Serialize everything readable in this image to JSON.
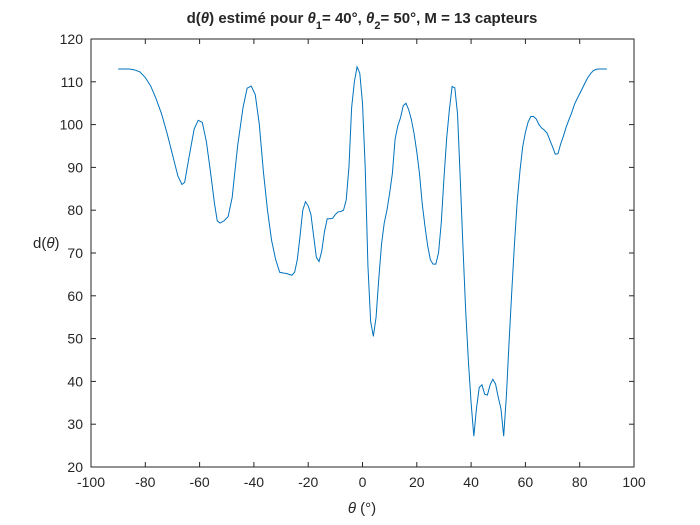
{
  "chart_data": {
    "type": "line",
    "title": {
      "prefix": "d(",
      "theta": "θ",
      "mid1": ") estimé pour ",
      "sub1": "1",
      "mid2": "= 40°, ",
      "sub2": "2",
      "suffix": "= 50°, M = 13 capteurs"
    },
    "xlabel": {
      "theta": "θ",
      "rest": " (°)"
    },
    "ylabel": {
      "prefix": "d(",
      "theta": "θ",
      "suffix": ")"
    },
    "xlim": [
      -100,
      100
    ],
    "ylim": [
      20,
      120
    ],
    "xticks": [
      -100,
      -80,
      -60,
      -40,
      -20,
      0,
      20,
      40,
      60,
      80,
      100
    ],
    "yticks": [
      20,
      30,
      40,
      50,
      60,
      70,
      80,
      90,
      100,
      110,
      120
    ],
    "grid": false,
    "legend": "none",
    "color": "#0072BD",
    "series": [
      {
        "x": [
          -90,
          -86,
          -84,
          -82,
          -80,
          -78,
          -76,
          -74,
          -72,
          -70,
          -68,
          -66.5,
          -65.5,
          -64,
          -62,
          -60.5,
          -59,
          -57.5,
          -56,
          -54.5,
          -53.5,
          -52.5,
          -51,
          -49.5,
          -48,
          -46,
          -44,
          -42.5,
          -41,
          -39.5,
          -38,
          -36.5,
          -35,
          -33.5,
          -32,
          -30.5,
          -29,
          -28,
          -27,
          -26,
          -25,
          -24,
          -23,
          -22,
          -21,
          -20,
          -19,
          -18,
          -17,
          -16,
          -15,
          -14,
          -13,
          -12,
          -11,
          -10,
          -9,
          -8,
          -7,
          -6,
          -5,
          -4,
          -3,
          -2,
          -1,
          0,
          1,
          2,
          3,
          4,
          5,
          6,
          7,
          8,
          9,
          10,
          11,
          12,
          13,
          14,
          15,
          16,
          17,
          18,
          19,
          20,
          21,
          22,
          23,
          24,
          25,
          26,
          27,
          28,
          29,
          30,
          31,
          32,
          33,
          34,
          35,
          36,
          37,
          38,
          39,
          40,
          41,
          42,
          43,
          44,
          45,
          46,
          47,
          48,
          49,
          50,
          51,
          52,
          53,
          54,
          55,
          56,
          57,
          58,
          59,
          60,
          61,
          62,
          63,
          64,
          65,
          66,
          67,
          68,
          69,
          70,
          71,
          72,
          73,
          74,
          75,
          76,
          77,
          78,
          79,
          80,
          81,
          82,
          83,
          84,
          85,
          86,
          87,
          88,
          89,
          90
        ],
        "y": [
          113,
          113,
          112.8,
          112.3,
          111,
          109,
          106,
          102.5,
          98,
          93,
          88,
          86,
          86.5,
          92,
          99,
          101,
          100.5,
          96,
          89,
          81.5,
          77.5,
          77,
          77.5,
          78.5,
          83,
          95,
          104,
          108.5,
          109,
          107,
          100,
          89,
          80,
          73,
          68.5,
          65.5,
          65.3,
          65.2,
          65,
          64.8,
          65.5,
          68.5,
          74,
          80,
          82,
          81,
          79,
          74,
          69,
          68,
          70.5,
          75,
          78,
          78,
          78.1,
          79,
          79.6,
          79.7,
          80,
          82.4,
          90,
          104,
          110,
          113.5,
          112,
          105,
          90,
          67,
          54,
          50.5,
          55,
          64,
          72,
          77,
          80,
          84,
          88.6,
          96.6,
          99.7,
          101.6,
          104.4,
          105,
          103.5,
          101.2,
          97.9,
          93.6,
          88.5,
          81.5,
          76.3,
          71.7,
          68.4,
          67.4,
          67.4,
          70,
          77,
          87.4,
          96.8,
          103.5,
          108.9,
          108.6,
          102.5,
          87.4,
          71.4,
          56.6,
          44.8,
          35,
          27.2,
          33.8,
          38.6,
          39.2,
          37,
          36.8,
          39.2,
          40.5,
          39.4,
          36.3,
          33.6,
          27.2,
          36.6,
          49.4,
          61.2,
          72.4,
          82.2,
          89.2,
          94.8,
          98.2,
          100.6,
          101.9,
          101.9,
          101.3,
          100,
          99.2,
          98.7,
          98,
          96.4,
          94.8,
          93.1,
          93.2,
          95.5,
          97.3,
          99.4,
          101.1,
          102.7,
          104.6,
          106,
          107.2,
          108.5,
          109.8,
          111,
          111.9,
          112.6,
          112.9,
          113,
          113,
          113,
          113
        ]
      }
    ]
  }
}
